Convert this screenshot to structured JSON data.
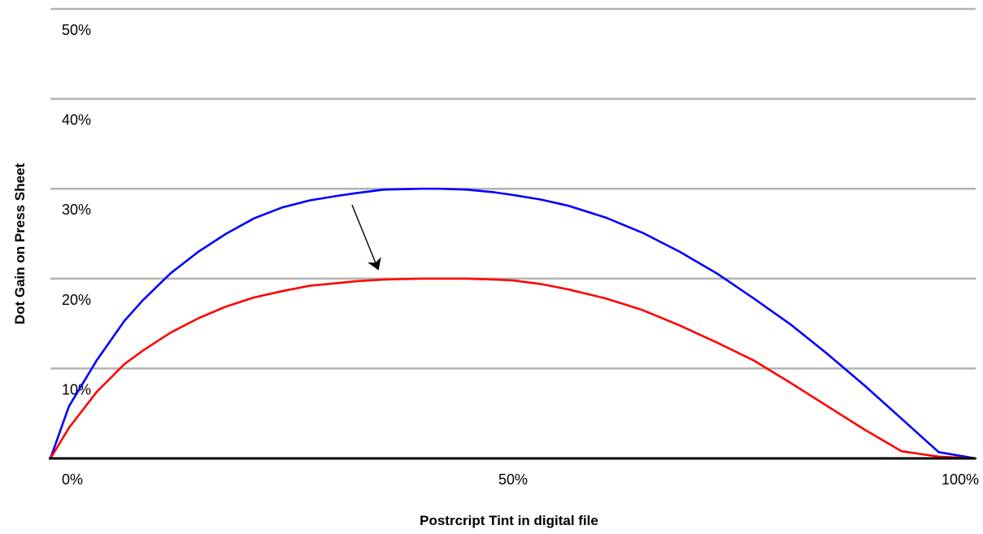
{
  "chart_data": {
    "type": "line",
    "title": "",
    "xlabel": "Postrcript Tint in digital file",
    "ylabel": "Dot Gain on Press Sheet",
    "xlim": [
      0,
      100
    ],
    "ylim": [
      0,
      50
    ],
    "x_ticks": [
      {
        "value": 0,
        "label": "0%"
      },
      {
        "value": 50,
        "label": "50%"
      },
      {
        "value": 100,
        "label": "100%"
      }
    ],
    "y_ticks": [
      {
        "value": 10,
        "label": "10%"
      },
      {
        "value": 20,
        "label": "20%"
      },
      {
        "value": 30,
        "label": "30%"
      },
      {
        "value": 40,
        "label": "40%"
      },
      {
        "value": 50,
        "label": "50%"
      }
    ],
    "grid": true,
    "legend": "none",
    "annotation": {
      "type": "arrow",
      "from": {
        "x": 32.6,
        "y": 28.2
      },
      "to": {
        "x": 35.4,
        "y": 21.1
      }
    },
    "series": [
      {
        "color": "#0000ff",
        "x": [
          0,
          2,
          5,
          8,
          10,
          13,
          16,
          19,
          22,
          25,
          28,
          31,
          33,
          36,
          40,
          42,
          45,
          48,
          50,
          53,
          56,
          60,
          64,
          68,
          72,
          76,
          80,
          84,
          88,
          92,
          96,
          100
        ],
        "y": [
          0,
          5.8,
          10.9,
          15.3,
          17.6,
          20.6,
          23.0,
          25.0,
          26.7,
          27.9,
          28.7,
          29.2,
          29.5,
          29.9,
          30.0,
          30.0,
          29.9,
          29.6,
          29.3,
          28.8,
          28.1,
          26.8,
          25.1,
          23.0,
          20.6,
          17.8,
          14.9,
          11.6,
          8.1,
          4.4,
          0.7,
          0
        ]
      },
      {
        "color": "#ff0000",
        "x": [
          0,
          2,
          5,
          8,
          10,
          13,
          16,
          19,
          22,
          25,
          28,
          31,
          33,
          36,
          40,
          42,
          45,
          48,
          50,
          53,
          56,
          60,
          64,
          68,
          72,
          76,
          80,
          84,
          88,
          92,
          96,
          100
        ],
        "y": [
          0,
          3.4,
          7.4,
          10.5,
          12.0,
          14.0,
          15.6,
          16.9,
          17.9,
          18.6,
          19.2,
          19.5,
          19.7,
          19.9,
          20.0,
          20.0,
          20.0,
          19.9,
          19.8,
          19.4,
          18.8,
          17.8,
          16.5,
          14.8,
          12.9,
          10.9,
          8.4,
          5.8,
          3.2,
          0.8,
          0.2,
          0
        ]
      }
    ]
  }
}
